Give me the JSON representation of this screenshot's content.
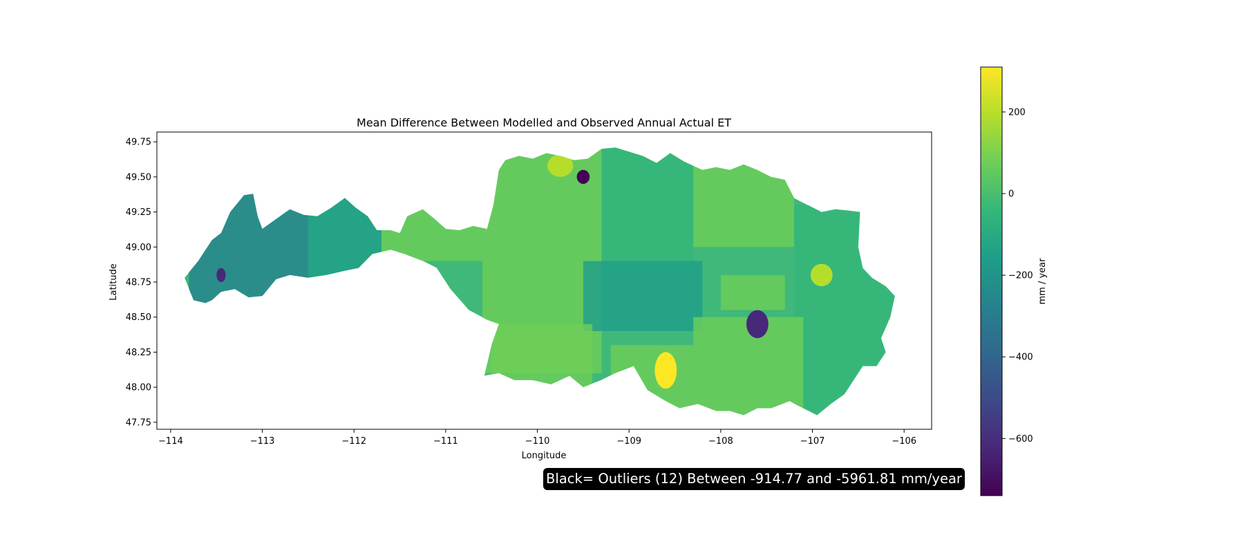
{
  "map": {
    "title": "Mean Difference Between Modelled and Observed Annual Actual ET",
    "xlabel": "Longitude",
    "ylabel": "Latitude",
    "extent": {
      "lon": [
        -114.15,
        -105.7
      ],
      "lat": [
        47.7,
        49.82
      ]
    },
    "xticks": [
      -114,
      -113,
      -112,
      -111,
      -110,
      -109,
      -108,
      -107,
      -106
    ],
    "yticks": [
      47.75,
      48.0,
      48.25,
      48.5,
      48.75,
      49.0,
      49.25,
      49.5,
      49.75
    ],
    "xtick_labels": [
      "−114",
      "−113",
      "−112",
      "−111",
      "−110",
      "−109",
      "−108",
      "−107",
      "−106"
    ],
    "ytick_labels": [
      "47.75",
      "48.00",
      "48.25",
      "48.50",
      "48.75",
      "49.00",
      "49.25",
      "49.50",
      "49.75"
    ],
    "basin_outline": [
      [
        -113.85,
        48.78
      ],
      [
        -113.7,
        48.9
      ],
      [
        -113.55,
        49.05
      ],
      [
        -113.45,
        49.1
      ],
      [
        -113.35,
        49.25
      ],
      [
        -113.2,
        49.37
      ],
      [
        -113.1,
        49.38
      ],
      [
        -113.05,
        49.22
      ],
      [
        -113.0,
        49.13
      ],
      [
        -112.85,
        49.2
      ],
      [
        -112.7,
        49.27
      ],
      [
        -112.55,
        49.23
      ],
      [
        -112.4,
        49.22
      ],
      [
        -112.25,
        49.28
      ],
      [
        -112.1,
        49.35
      ],
      [
        -111.98,
        49.28
      ],
      [
        -111.85,
        49.22
      ],
      [
        -111.75,
        49.12
      ],
      [
        -111.6,
        49.12
      ],
      [
        -111.5,
        49.1
      ],
      [
        -111.42,
        49.22
      ],
      [
        -111.25,
        49.27
      ],
      [
        -111.12,
        49.2
      ],
      [
        -111.0,
        49.13
      ],
      [
        -110.85,
        49.12
      ],
      [
        -110.7,
        49.15
      ],
      [
        -110.55,
        49.13
      ],
      [
        -110.48,
        49.3
      ],
      [
        -110.42,
        49.55
      ],
      [
        -110.35,
        49.62
      ],
      [
        -110.2,
        49.65
      ],
      [
        -110.05,
        49.63
      ],
      [
        -109.9,
        49.67
      ],
      [
        -109.75,
        49.65
      ],
      [
        -109.6,
        49.62
      ],
      [
        -109.45,
        49.63
      ],
      [
        -109.3,
        49.7
      ],
      [
        -109.15,
        49.71
      ],
      [
        -109.0,
        49.68
      ],
      [
        -108.85,
        49.65
      ],
      [
        -108.7,
        49.6
      ],
      [
        -108.55,
        49.67
      ],
      [
        -108.4,
        49.61
      ],
      [
        -108.2,
        49.55
      ],
      [
        -108.05,
        49.57
      ],
      [
        -107.9,
        49.55
      ],
      [
        -107.75,
        49.59
      ],
      [
        -107.6,
        49.55
      ],
      [
        -107.45,
        49.5
      ],
      [
        -107.3,
        49.48
      ],
      [
        -107.2,
        49.35
      ],
      [
        -107.05,
        49.3
      ],
      [
        -106.9,
        49.25
      ],
      [
        -106.75,
        49.27
      ],
      [
        -106.6,
        49.26
      ],
      [
        -106.48,
        49.25
      ],
      [
        -106.5,
        49.0
      ],
      [
        -106.45,
        48.85
      ],
      [
        -106.35,
        48.78
      ],
      [
        -106.2,
        48.72
      ],
      [
        -106.1,
        48.65
      ],
      [
        -106.15,
        48.5
      ],
      [
        -106.25,
        48.35
      ],
      [
        -106.2,
        48.25
      ],
      [
        -106.3,
        48.15
      ],
      [
        -106.45,
        48.15
      ],
      [
        -106.55,
        48.05
      ],
      [
        -106.65,
        47.95
      ],
      [
        -106.8,
        47.88
      ],
      [
        -106.95,
        47.8
      ],
      [
        -107.1,
        47.85
      ],
      [
        -107.25,
        47.9
      ],
      [
        -107.45,
        47.85
      ],
      [
        -107.6,
        47.85
      ],
      [
        -107.75,
        47.8
      ],
      [
        -107.9,
        47.83
      ],
      [
        -108.05,
        47.83
      ],
      [
        -108.25,
        47.88
      ],
      [
        -108.45,
        47.85
      ],
      [
        -108.6,
        47.9
      ],
      [
        -108.8,
        47.98
      ],
      [
        -108.95,
        48.15
      ],
      [
        -109.15,
        48.1
      ],
      [
        -109.3,
        48.05
      ],
      [
        -109.5,
        48.0
      ],
      [
        -109.65,
        48.08
      ],
      [
        -109.85,
        48.02
      ],
      [
        -110.05,
        48.05
      ],
      [
        -110.25,
        48.05
      ],
      [
        -110.42,
        48.1
      ],
      [
        -110.58,
        48.08
      ],
      [
        -110.5,
        48.3
      ],
      [
        -110.42,
        48.45
      ],
      [
        -110.55,
        48.48
      ],
      [
        -110.75,
        48.55
      ],
      [
        -110.95,
        48.7
      ],
      [
        -111.1,
        48.85
      ],
      [
        -111.25,
        48.9
      ],
      [
        -111.45,
        48.95
      ],
      [
        -111.6,
        48.98
      ],
      [
        -111.8,
        48.95
      ],
      [
        -111.95,
        48.85
      ],
      [
        -112.1,
        48.83
      ],
      [
        -112.3,
        48.8
      ],
      [
        -112.5,
        48.78
      ],
      [
        -112.7,
        48.8
      ],
      [
        -112.85,
        48.77
      ],
      [
        -113.0,
        48.65
      ],
      [
        -113.15,
        48.64
      ],
      [
        -113.3,
        48.7
      ],
      [
        -113.45,
        48.68
      ],
      [
        -113.55,
        48.62
      ],
      [
        -113.62,
        48.6
      ],
      [
        -113.75,
        48.62
      ],
      [
        -113.8,
        48.7
      ],
      [
        -113.85,
        48.78
      ]
    ],
    "outlier_note": "Black= Outliers (12) Between -914.77 and -5961.81 mm/year",
    "outlier_color": "#000000"
  },
  "colorbar": {
    "label": "mm / year",
    "range": [
      -740,
      310
    ],
    "ticks": [
      200,
      0,
      -200,
      -400,
      -600
    ],
    "tick_labels": [
      "200",
      "0",
      "−200",
      "−400",
      "−600"
    ],
    "colormap": "viridis",
    "colormap_stops": [
      "#440154",
      "#482878",
      "#3e4989",
      "#31688e",
      "#26828e",
      "#1f9e89",
      "#35b779",
      "#6ece58",
      "#b5de2b",
      "#fde725"
    ]
  },
  "colors": {
    "background": "#ffffff",
    "axes_border": "#000000",
    "outline_stroke": "#ffffff"
  }
}
